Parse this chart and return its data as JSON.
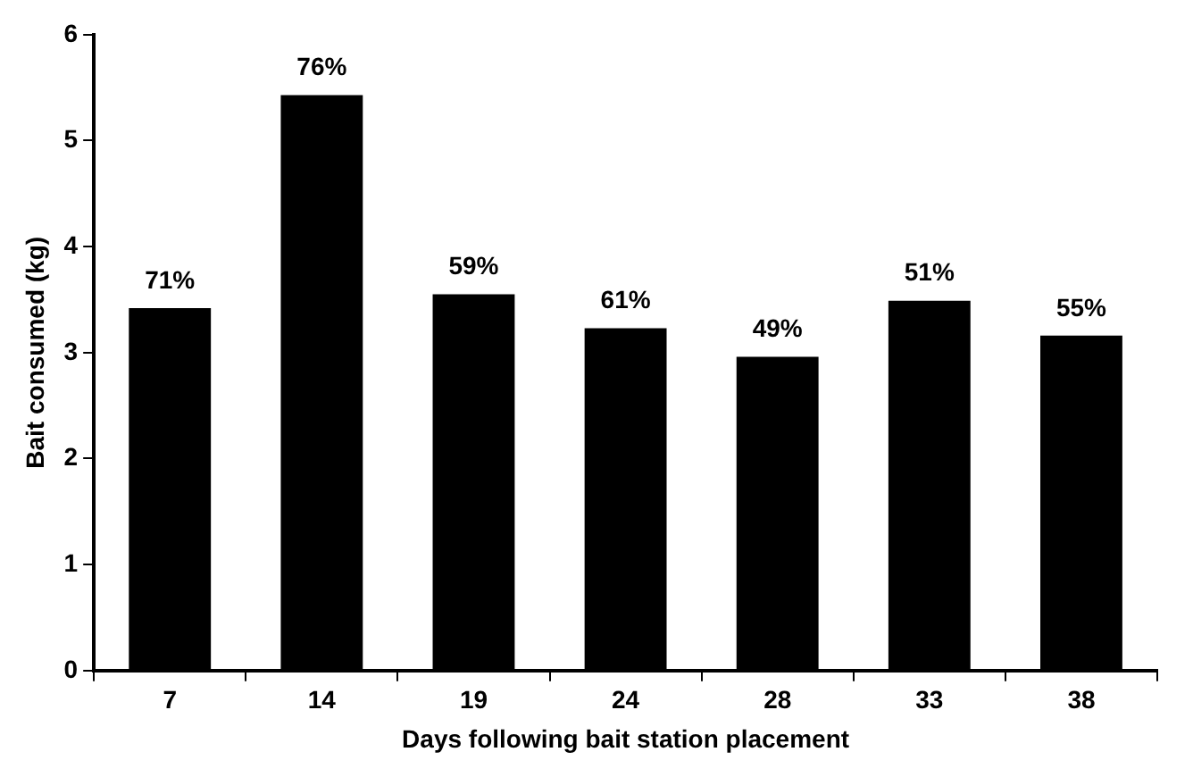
{
  "chart_data": {
    "type": "bar",
    "xlabel": "Days following bait station placement",
    "ylabel": "Bait consumed (kg)",
    "categories": [
      "7",
      "14",
      "19",
      "24",
      "28",
      "33",
      "38"
    ],
    "values": [
      3.42,
      5.43,
      3.55,
      3.23,
      2.96,
      3.49,
      3.16
    ],
    "annotations": [
      {
        "text": "71%",
        "x": "7",
        "y": 3.42
      },
      {
        "text": "76%",
        "x": "14",
        "y": 5.43
      },
      {
        "text": "59%",
        "x": "19",
        "y": 3.55
      },
      {
        "text": "61%",
        "x": "24",
        "y": 3.23
      },
      {
        "text": "49%",
        "x": "28",
        "y": 2.96
      },
      {
        "text": "51%",
        "x": "33",
        "y": 3.49
      },
      {
        "text": "55%",
        "x": "38",
        "y": 3.16
      }
    ],
    "color": "#000000",
    "ylim": [
      0,
      6
    ],
    "yticks": [
      0,
      1,
      2,
      3,
      4,
      5,
      6
    ]
  }
}
